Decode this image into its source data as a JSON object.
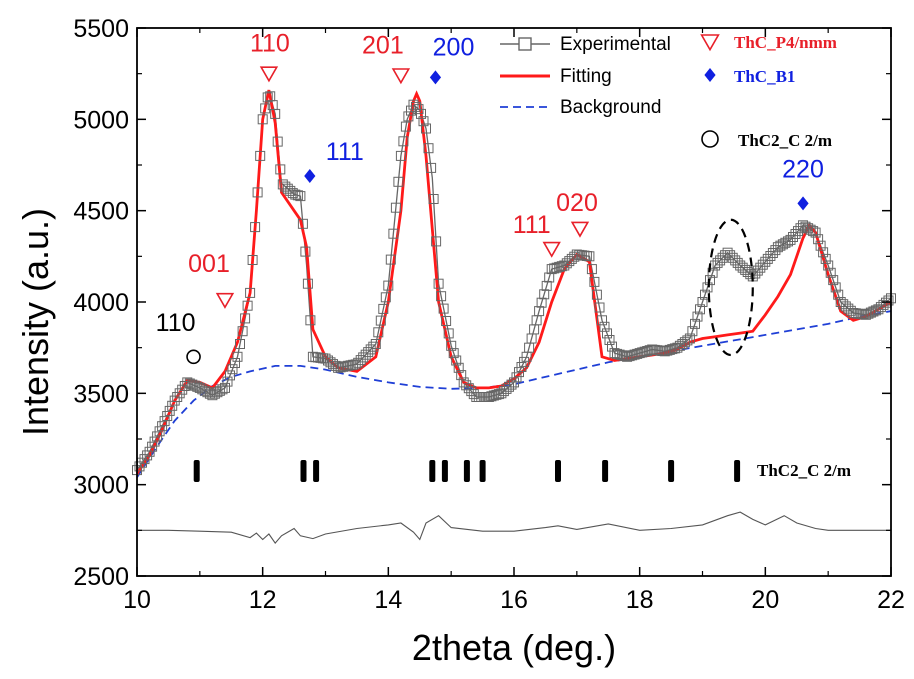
{
  "chart_data": {
    "type": "line",
    "xlabel": "2theta (deg.)",
    "ylabel": "Intensity (a.u.)",
    "xlim": [
      10,
      22
    ],
    "ylim": [
      2500,
      5500
    ],
    "x_ticks": [
      "10",
      "12",
      "14",
      "16",
      "18",
      "20",
      "22"
    ],
    "y_ticks": [
      "2500",
      "3000",
      "3500",
      "4000",
      "4500",
      "5000",
      "5500"
    ],
    "grid": false,
    "legend_position": "top-right",
    "colors": {
      "experimental": "#666666",
      "fitting": "#ff1a1a",
      "background": "#1f3fd6",
      "difference": "#555555",
      "p4nmm": "#e8202a",
      "b1": "#1020e0",
      "c2m": "#000000"
    },
    "legend": [
      {
        "label": "Experimental",
        "style": "line-square-marker",
        "series": "experimental"
      },
      {
        "label": "Fitting",
        "style": "solid-red-line",
        "series": "fitting"
      },
      {
        "label": "Background",
        "style": "dashed-blue-line",
        "series": "background"
      }
    ],
    "phase_legend": [
      {
        "label": "ThC_P4/nmm",
        "symbol": "open-triangle-down",
        "color": "#e8202a"
      },
      {
        "label": "ThC_B1",
        "symbol": "filled-diamond",
        "color": "#1020e0"
      },
      {
        "label": "ThC2_C 2/m",
        "symbol": "open-circle",
        "color": "#000000"
      }
    ],
    "series": [
      {
        "name": "Experimental",
        "x": [
          10.0,
          10.2,
          10.4,
          10.6,
          10.8,
          11.0,
          11.2,
          11.4,
          11.6,
          11.8,
          11.9,
          12.0,
          12.1,
          12.2,
          12.3,
          12.5,
          12.6,
          12.7,
          12.8,
          13.0,
          13.2,
          13.5,
          13.8,
          14.0,
          14.2,
          14.3,
          14.4,
          14.5,
          14.6,
          14.7,
          14.8,
          15.0,
          15.2,
          15.4,
          15.6,
          15.8,
          16.0,
          16.2,
          16.4,
          16.6,
          16.8,
          17.0,
          17.2,
          17.4,
          17.6,
          17.8,
          18.0,
          18.2,
          18.4,
          18.6,
          18.8,
          19.0,
          19.2,
          19.4,
          19.6,
          19.8,
          20.0,
          20.2,
          20.4,
          20.6,
          20.8,
          21.0,
          21.2,
          21.4,
          21.6,
          21.8,
          22.0
        ],
        "y": [
          3080,
          3180,
          3320,
          3460,
          3560,
          3530,
          3490,
          3530,
          3700,
          4050,
          4500,
          5000,
          5150,
          5030,
          4650,
          4590,
          4580,
          4200,
          3700,
          3690,
          3640,
          3660,
          3770,
          4090,
          4800,
          5000,
          5080,
          5050,
          4950,
          4680,
          4100,
          3760,
          3560,
          3480,
          3480,
          3500,
          3560,
          3700,
          3950,
          4180,
          4200,
          4260,
          4250,
          3900,
          3720,
          3700,
          3720,
          3740,
          3730,
          3750,
          3800,
          4000,
          4200,
          4270,
          4200,
          4140,
          4220,
          4300,
          4340,
          4420,
          4380,
          4200,
          4000,
          3940,
          3930,
          3960,
          4020
        ]
      },
      {
        "name": "Fitting",
        "x": [
          10.0,
          10.2,
          10.4,
          10.6,
          10.8,
          11.0,
          11.2,
          11.4,
          11.6,
          11.8,
          11.9,
          12.0,
          12.1,
          12.2,
          12.3,
          12.5,
          12.6,
          12.7,
          12.8,
          13.0,
          13.2,
          13.5,
          13.8,
          14.0,
          14.2,
          14.3,
          14.4,
          14.45,
          14.5,
          14.6,
          14.8,
          15.0,
          15.2,
          15.4,
          15.6,
          15.8,
          16.0,
          16.2,
          16.4,
          16.6,
          16.8,
          17.0,
          17.2,
          17.4,
          17.6,
          17.8,
          18.0,
          18.2,
          18.4,
          18.6,
          18.8,
          19.0,
          19.2,
          19.4,
          19.6,
          19.8,
          20.0,
          20.2,
          20.4,
          20.6,
          20.7,
          20.8,
          21.0,
          21.2,
          21.4,
          21.6,
          21.8,
          22.0
        ],
        "y": [
          3060,
          3160,
          3300,
          3460,
          3570,
          3560,
          3530,
          3620,
          3780,
          4050,
          4500,
          5000,
          5160,
          4980,
          4600,
          4500,
          4450,
          4300,
          3850,
          3700,
          3640,
          3620,
          3700,
          4000,
          4500,
          4900,
          5100,
          5140,
          5100,
          4800,
          4000,
          3700,
          3560,
          3530,
          3530,
          3540,
          3580,
          3640,
          3780,
          4000,
          4180,
          4260,
          4220,
          3700,
          3680,
          3690,
          3700,
          3710,
          3720,
          3740,
          3780,
          3800,
          3810,
          3820,
          3830,
          3840,
          3930,
          4030,
          4150,
          4350,
          4420,
          4380,
          4150,
          3950,
          3900,
          3920,
          3960,
          4000
        ]
      },
      {
        "name": "Background",
        "x": [
          10.0,
          10.3,
          10.6,
          10.9,
          11.2,
          11.5,
          11.8,
          12.2,
          12.6,
          13.0,
          13.5,
          14.0,
          14.5,
          15.0,
          15.5,
          16.0,
          16.5,
          17.0,
          17.5,
          18.0,
          18.5,
          19.0,
          19.5,
          20.0,
          20.5,
          21.0,
          21.5,
          22.0
        ],
        "y": [
          3040,
          3200,
          3350,
          3460,
          3540,
          3590,
          3620,
          3650,
          3650,
          3630,
          3590,
          3560,
          3535,
          3525,
          3530,
          3550,
          3590,
          3630,
          3670,
          3700,
          3730,
          3760,
          3790,
          3820,
          3850,
          3880,
          3920,
          3950
        ]
      },
      {
        "name": "Difference",
        "x": [
          10.0,
          10.5,
          11.0,
          11.5,
          11.8,
          11.9,
          12.0,
          12.1,
          12.2,
          12.3,
          12.5,
          12.6,
          12.8,
          13.0,
          13.5,
          14.0,
          14.2,
          14.4,
          14.5,
          14.6,
          14.8,
          15.0,
          15.5,
          16.0,
          16.5,
          16.7,
          17.0,
          17.5,
          18.0,
          18.5,
          19.0,
          19.4,
          19.6,
          19.8,
          20.0,
          20.3,
          20.5,
          20.8,
          21.0,
          21.5,
          22.0
        ],
        "y": [
          2750,
          2750,
          2745,
          2740,
          2710,
          2735,
          2700,
          2730,
          2680,
          2720,
          2760,
          2720,
          2705,
          2730,
          2760,
          2780,
          2790,
          2740,
          2700,
          2790,
          2830,
          2765,
          2745,
          2745,
          2765,
          2775,
          2755,
          2785,
          2750,
          2760,
          2780,
          2830,
          2850,
          2810,
          2780,
          2830,
          2790,
          2760,
          2750,
          2750,
          2750
        ]
      }
    ],
    "peak_annotations": [
      {
        "label": "001",
        "x": 11.4,
        "y": 4010,
        "phase": "ThC_P4/nmm"
      },
      {
        "label": "110",
        "x": 12.1,
        "y": 5250,
        "phase": "ThC_P4/nmm"
      },
      {
        "label": "201",
        "x": 14.2,
        "y": 5240,
        "phase": "ThC_P4/nmm"
      },
      {
        "label": "200",
        "x": 14.75,
        "y": 5230,
        "phase": "ThC_B1"
      },
      {
        "label": "111",
        "x": 12.75,
        "y": 4690,
        "phase": "ThC_B1"
      },
      {
        "label": "110",
        "x": 10.9,
        "y": 3700,
        "phase": "ThC2_C 2/m"
      },
      {
        "label": "111",
        "x": 16.6,
        "y": 4290,
        "phase": "ThC_P4/nmm"
      },
      {
        "label": "020",
        "x": 17.05,
        "y": 4400,
        "phase": "ThC_P4/nmm"
      },
      {
        "label": "220",
        "x": 20.6,
        "y": 4540,
        "phase": "ThC_B1"
      }
    ],
    "bragg_positions": {
      "phase": "ThC2_C 2/m",
      "label": "ThC2_C 2/m",
      "x": [
        10.95,
        12.65,
        12.85,
        14.7,
        14.9,
        15.25,
        15.5,
        16.7,
        17.45,
        18.5,
        19.55
      ]
    },
    "highlight_ellipse": {
      "x_center": 19.45,
      "y_center": 4080,
      "x_radius": 0.35,
      "y_radius": 370
    }
  }
}
